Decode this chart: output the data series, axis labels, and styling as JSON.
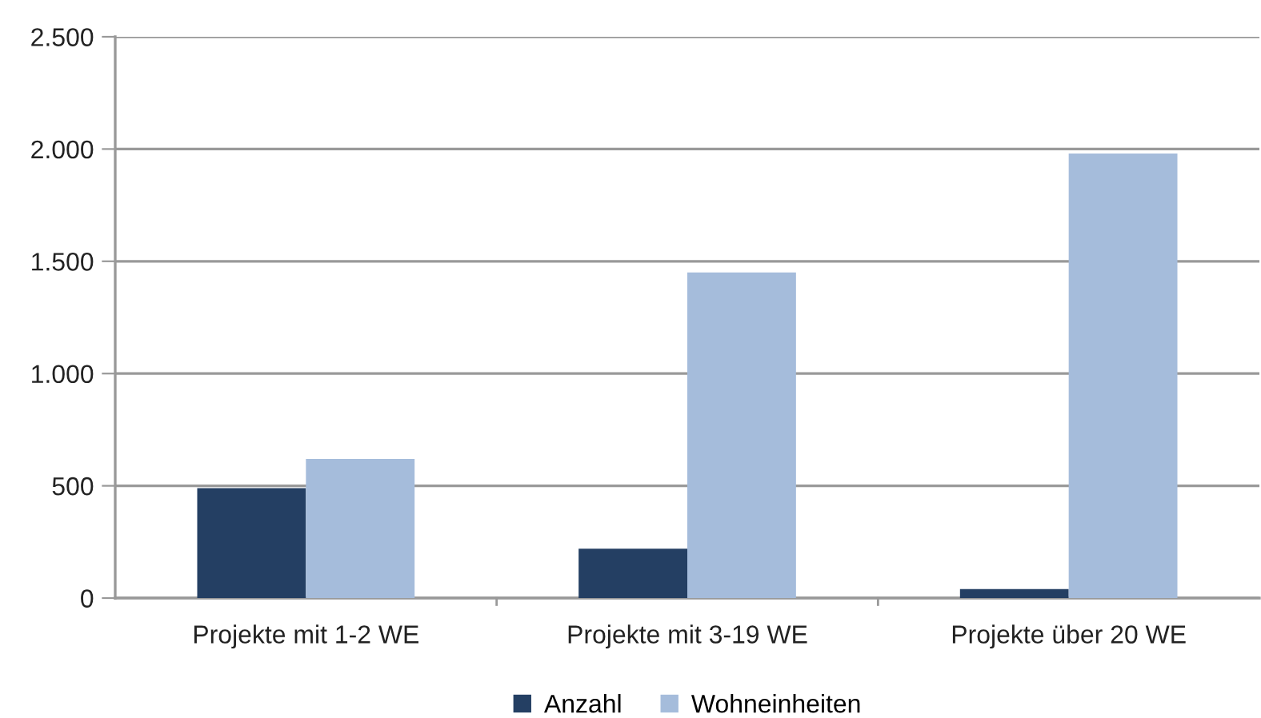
{
  "chart_data": {
    "type": "bar",
    "categories": [
      "Projekte mit 1-2 WE",
      "Projekte mit 3-19 WE",
      "Projekte über 20 WE"
    ],
    "series": [
      {
        "name": "Anzahl",
        "color": "#243f63",
        "values": [
          490,
          220,
          40
        ]
      },
      {
        "name": "Wohneinheiten",
        "color": "#a5bcdb",
        "values": [
          620,
          1450,
          1980
        ]
      }
    ],
    "ylim": [
      0,
      2500
    ],
    "yticks": [
      0,
      500,
      {
        "value": 1000,
        "label": "1.000"
      },
      {
        "value": 1500,
        "label": "1.500"
      },
      {
        "value": 2000,
        "label": "2.000"
      },
      {
        "value": 2500,
        "label": "2.500"
      }
    ],
    "grid": "y",
    "legend": "bottom"
  }
}
